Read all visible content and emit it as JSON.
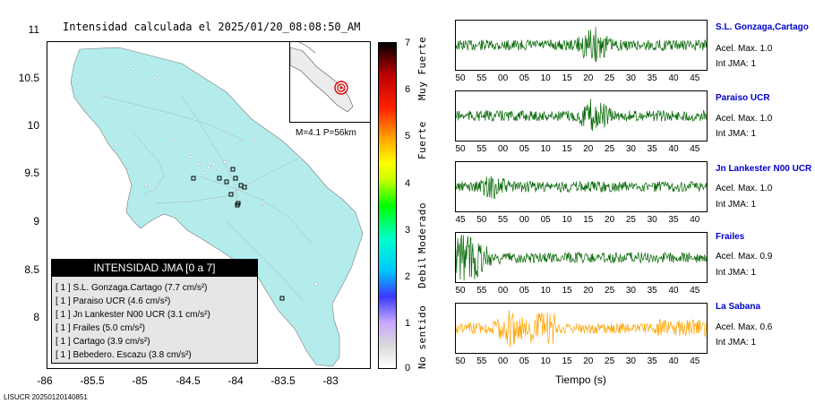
{
  "map": {
    "title": "Intensidad calculada el 2025/01/20_08:08:50_AM",
    "y_ticks": [
      "11",
      "10.5",
      "10",
      "9.5",
      "9",
      "8.5",
      "8"
    ],
    "x_ticks": [
      "-86",
      "-85.5",
      "-85",
      "-84.5",
      "-84",
      "-83.5",
      "-83"
    ],
    "land_color": "#b4ecec",
    "inset_label": "M=4.1 P=56km"
  },
  "legend": {
    "title": "INTENSIDAD JMA [0 a 7]",
    "rows": [
      "[ 1 ]  S.L. Gonzaga.Cartago (7.7 cm/s²)",
      "[ 1 ]  Paraiso UCR (4.6 cm/s²)",
      "[ 1 ]  Jn Lankester N00 UCR (3.1 cm/s²)",
      "[ 1 ]  Frailes (5.0 cm/s²)",
      "[ 1 ]  Cartago (3.9 cm/s²)",
      "[ 1 ]  Bebedero. Escazu (3.8 cm/s²)"
    ]
  },
  "scale": {
    "numbers": [
      "7",
      "6",
      "5",
      "4",
      "3",
      "2",
      "1",
      "0"
    ],
    "words": [
      "Muy Fuerte",
      "Fuerte",
      "Moderado",
      "Debil",
      "No sentido"
    ]
  },
  "traces": [
    {
      "name": "S.L. Gonzaga,Cartago",
      "acel": "Acel. Max. 1.0",
      "jma": "Int JMA: 1",
      "color": "#006400",
      "ticks": [
        "50",
        "55",
        "00",
        "05",
        "10",
        "15",
        "20",
        "25",
        "30",
        "35",
        "40",
        "45"
      ]
    },
    {
      "name": "Paraiso UCR",
      "acel": "Acel. Max. 1.0",
      "jma": "Int JMA: 1",
      "color": "#006400",
      "ticks": [
        "50",
        "55",
        "00",
        "05",
        "10",
        "15",
        "20",
        "25",
        "30",
        "35",
        "40",
        "45"
      ]
    },
    {
      "name": "Jn Lankester N00 UCR",
      "acel": "Acel. Max. 1.0",
      "jma": "Int JMA: 1",
      "color": "#006400",
      "ticks": [
        "45",
        "50",
        "55",
        "00",
        "05",
        "10",
        "15",
        "20",
        "25",
        "30",
        "35",
        "40"
      ]
    },
    {
      "name": "Frailes",
      "acel": "Acel. Max. 0.9",
      "jma": "Int JMA: 1",
      "color": "#006400",
      "ticks": [
        "50",
        "55",
        "00",
        "05",
        "10",
        "15",
        "20",
        "25",
        "30",
        "35",
        "40",
        "45"
      ]
    },
    {
      "name": "La Sabana",
      "acel": "Acel. Max. 0.6",
      "jma": "Int JMA: 1",
      "color": "#ffa500",
      "ticks": [
        "50",
        "55",
        "00",
        "05",
        "10",
        "15",
        "20",
        "25",
        "30",
        "35",
        "40",
        "45"
      ]
    }
  ],
  "time_label": "Tiempo (s)",
  "footer_id": "LISUCR 20250120140851"
}
